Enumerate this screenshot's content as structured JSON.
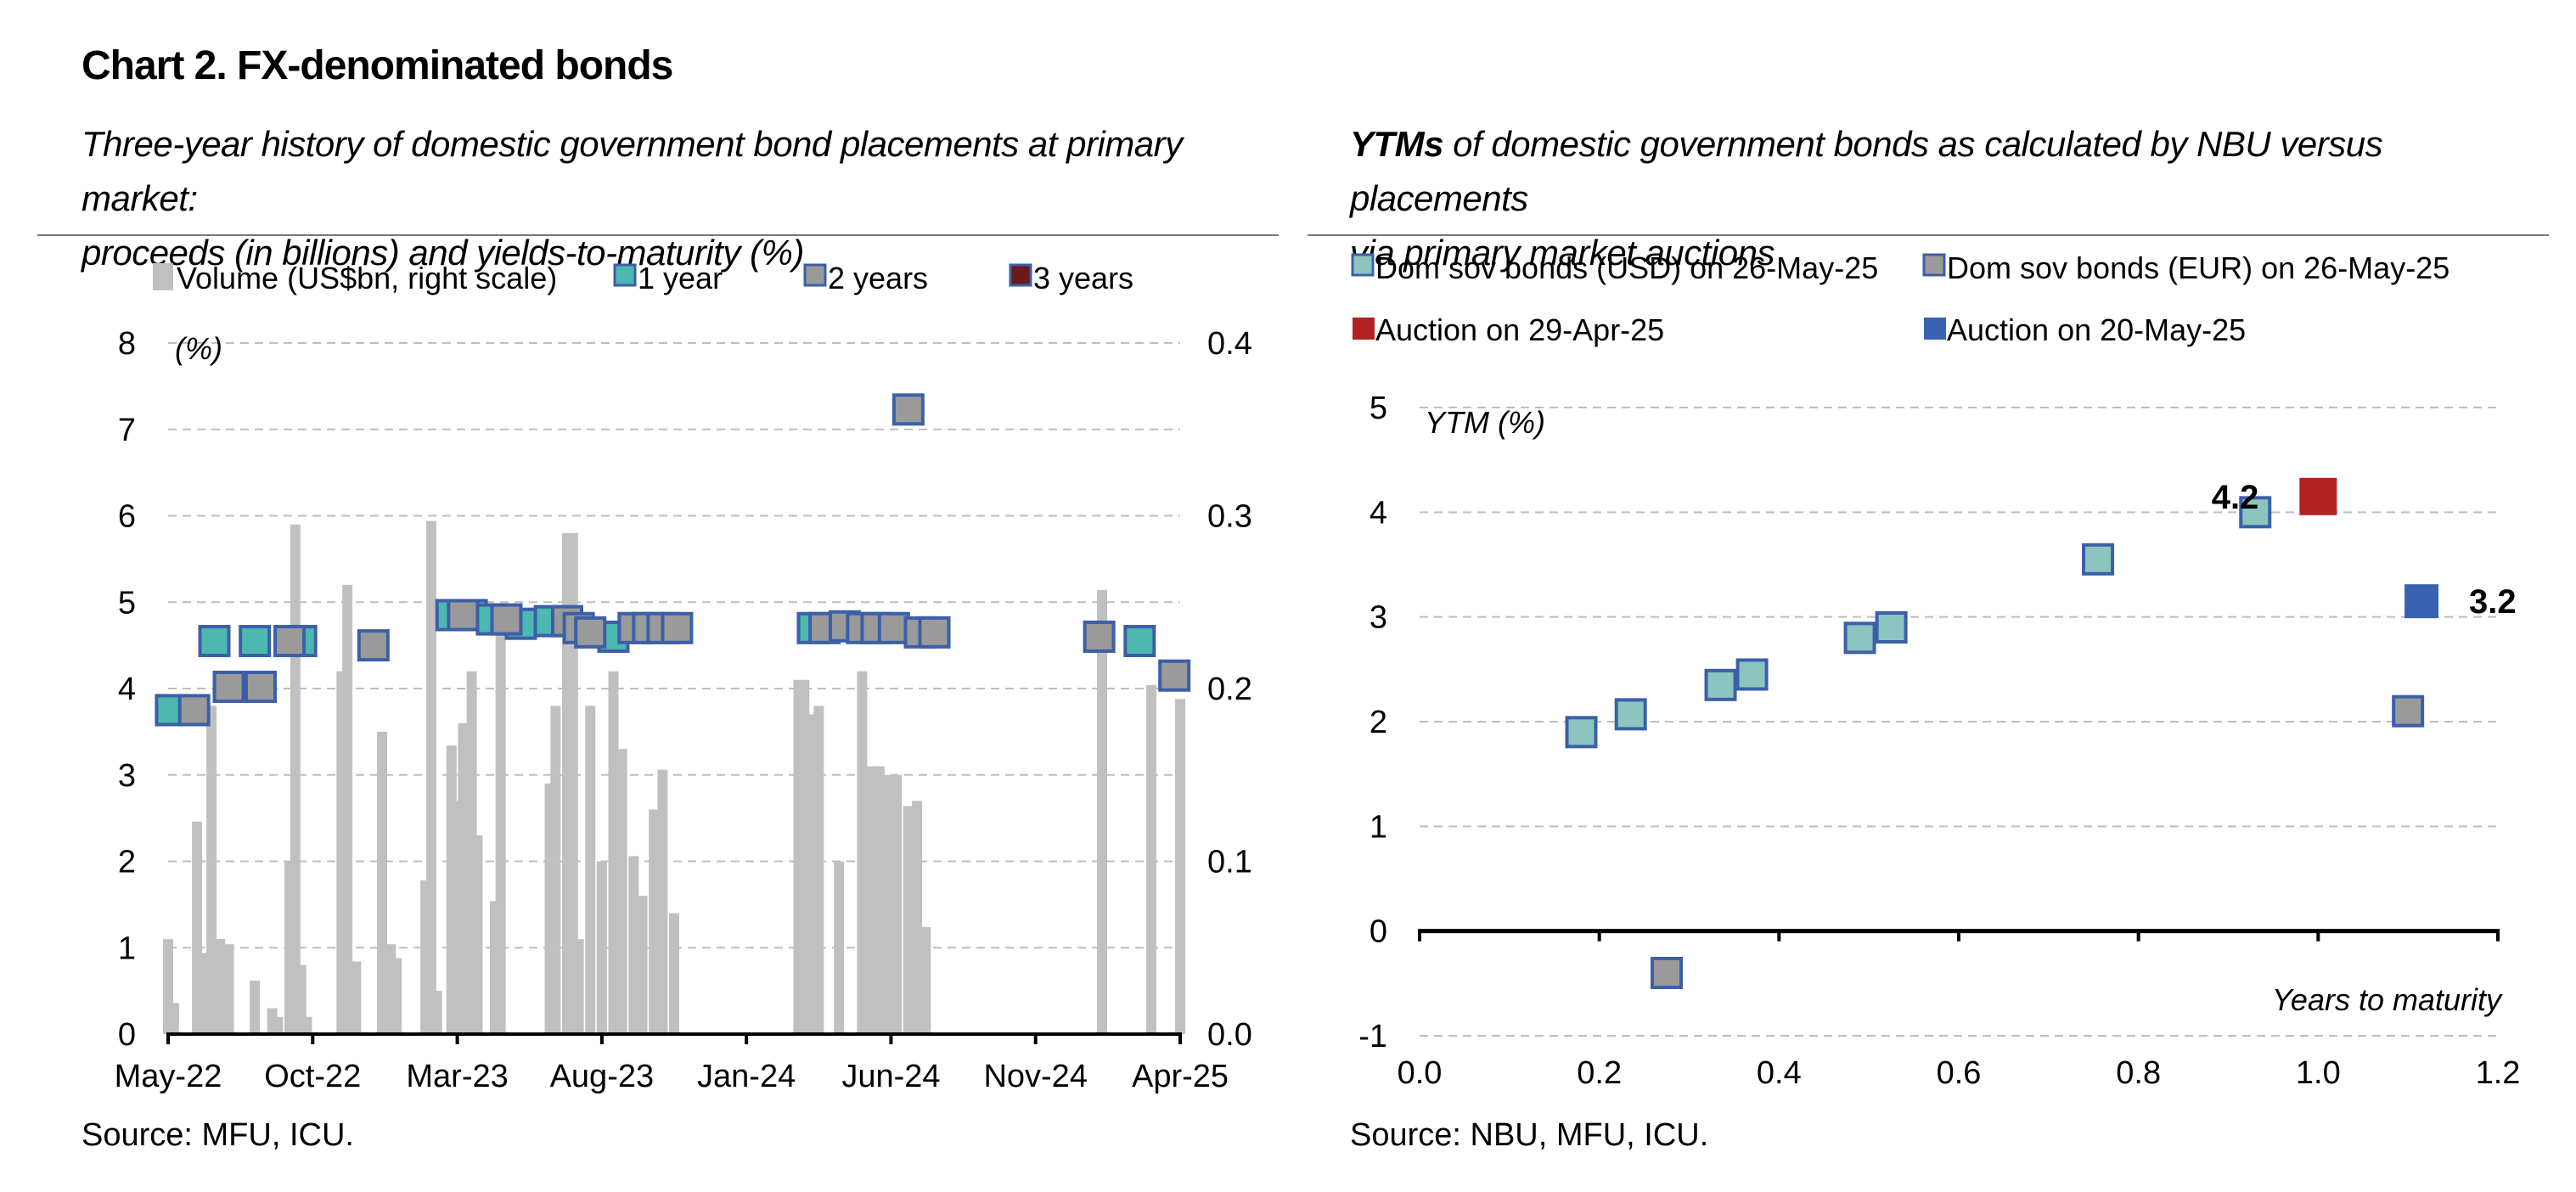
{
  "title": "Chart 2. FX-denominated bonds",
  "left_panel": {
    "subtitle_line1": "Three-year history of domestic government bond placements at primary market:",
    "subtitle_line2": "proceeds (in billions) and yields-to-maturity (%)",
    "source": "Source: MFU, ICU."
  },
  "right_panel": {
    "subtitle_prefix": "YTMs",
    "subtitle_line1_rest": " of domestic government bonds as calculated by NBU versus placements",
    "subtitle_line2": "via primary market auctions",
    "source": "Source: NBU, MFU, ICU."
  },
  "colors": {
    "volume": "#c0c0c0",
    "one_year": "#4cb8b0",
    "two_years": "#9a9a9a",
    "three_years": "#6b1a1a",
    "marker_border": "#3c5fa8",
    "usd": "#8cc4c0",
    "eur": "#9a9a9a",
    "auction_apr": "#b22222",
    "auction_may": "#3a62b0",
    "grid": "#bdbdbd"
  },
  "chart_data": [
    {
      "type": "bar",
      "secondary_type": "scatter",
      "x_ticks": [
        "May-22",
        "Oct-22",
        "Mar-23",
        "Aug-23",
        "Jan-24",
        "Jun-24",
        "Nov-24",
        "Apr-25"
      ],
      "x_range_months": [
        0,
        35
      ],
      "ylabel": "(%)",
      "ylim": [
        0,
        8
      ],
      "y_ticks": [
        0,
        1,
        2,
        3,
        4,
        5,
        6,
        7,
        8
      ],
      "y2lim": [
        0,
        0.4
      ],
      "y2_ticks": [
        "0.0",
        "0.1",
        "0.2",
        "0.3",
        "0.4"
      ],
      "grid": "horizontal dashed",
      "legend_position": "top",
      "legend": [
        "Volume (US$bn, right scale)",
        "1 year",
        "2 years",
        "3 years"
      ],
      "volume_series": [
        {
          "x": 0.0,
          "v": 0.055
        },
        {
          "x": 0.2,
          "v": 0.018
        },
        {
          "x": 1.0,
          "v": 0.123
        },
        {
          "x": 1.2,
          "v": 0.047
        },
        {
          "x": 1.5,
          "v": 0.19
        },
        {
          "x": 1.8,
          "v": 0.055
        },
        {
          "x": 1.95,
          "v": 0.018
        },
        {
          "x": 2.1,
          "v": 0.052
        },
        {
          "x": 3.0,
          "v": 0.031
        },
        {
          "x": 3.6,
          "v": 0.015
        },
        {
          "x": 3.8,
          "v": 0.01
        },
        {
          "x": 4.2,
          "v": 0.1
        },
        {
          "x": 4.4,
          "v": 0.295
        },
        {
          "x": 4.6,
          "v": 0.04
        },
        {
          "x": 4.8,
          "v": 0.01
        },
        {
          "x": 6.0,
          "v": 0.21
        },
        {
          "x": 6.2,
          "v": 0.26
        },
        {
          "x": 6.5,
          "v": 0.042
        },
        {
          "x": 7.4,
          "v": 0.175
        },
        {
          "x": 7.7,
          "v": 0.052
        },
        {
          "x": 7.9,
          "v": 0.044
        },
        {
          "x": 8.9,
          "v": 0.089
        },
        {
          "x": 9.1,
          "v": 0.297
        },
        {
          "x": 9.3,
          "v": 0.025
        },
        {
          "x": 9.8,
          "v": 0.167
        },
        {
          "x": 10.0,
          "v": 0.135
        },
        {
          "x": 10.2,
          "v": 0.18
        },
        {
          "x": 10.5,
          "v": 0.21
        },
        {
          "x": 10.7,
          "v": 0.115
        },
        {
          "x": 11.3,
          "v": 0.077
        },
        {
          "x": 11.5,
          "v": 0.24
        },
        {
          "x": 13.2,
          "v": 0.145
        },
        {
          "x": 13.4,
          "v": 0.19
        },
        {
          "x": 13.8,
          "v": 0.29
        },
        {
          "x": 14.0,
          "v": 0.29
        },
        {
          "x": 14.2,
          "v": 0.055
        },
        {
          "x": 14.6,
          "v": 0.19
        },
        {
          "x": 15.0,
          "v": 0.1
        },
        {
          "x": 15.4,
          "v": 0.21
        },
        {
          "x": 15.7,
          "v": 0.165
        },
        {
          "x": 16.1,
          "v": 0.103
        },
        {
          "x": 16.4,
          "v": 0.08
        },
        {
          "x": 16.8,
          "v": 0.13
        },
        {
          "x": 17.1,
          "v": 0.153
        },
        {
          "x": 17.5,
          "v": 0.07
        },
        {
          "x": 21.8,
          "v": 0.205
        },
        {
          "x": 22.0,
          "v": 0.205
        },
        {
          "x": 22.3,
          "v": 0.185
        },
        {
          "x": 22.5,
          "v": 0.19
        },
        {
          "x": 23.2,
          "v": 0.1
        },
        {
          "x": 24.0,
          "v": 0.21
        },
        {
          "x": 24.3,
          "v": 0.155
        },
        {
          "x": 24.6,
          "v": 0.155
        },
        {
          "x": 24.9,
          "v": 0.15
        },
        {
          "x": 25.2,
          "v": 0.15
        },
        {
          "x": 25.6,
          "v": 0.132
        },
        {
          "x": 25.9,
          "v": 0.135
        },
        {
          "x": 26.2,
          "v": 0.062
        },
        {
          "x": 32.3,
          "v": 0.257
        },
        {
          "x": 34.0,
          "v": 0.202
        },
        {
          "x": 35.0,
          "v": 0.194
        }
      ],
      "series": [
        {
          "name": "1 year",
          "points": [
            {
              "x": 0.1,
              "y": 3.75
            },
            {
              "x": 1.6,
              "y": 4.55
            },
            {
              "x": 3.0,
              "y": 4.55
            },
            {
              "x": 4.6,
              "y": 4.55
            },
            {
              "x": 9.8,
              "y": 4.85
            },
            {
              "x": 10.5,
              "y": 4.85
            },
            {
              "x": 11.2,
              "y": 4.8
            },
            {
              "x": 12.2,
              "y": 4.75
            },
            {
              "x": 13.2,
              "y": 4.78
            },
            {
              "x": 15.4,
              "y": 4.6
            },
            {
              "x": 22.3,
              "y": 4.7
            },
            {
              "x": 33.6,
              "y": 4.55
            }
          ]
        },
        {
          "name": "2 years",
          "points": [
            {
              "x": 0.9,
              "y": 3.75
            },
            {
              "x": 2.1,
              "y": 4.02
            },
            {
              "x": 3.2,
              "y": 4.02
            },
            {
              "x": 4.2,
              "y": 4.55
            },
            {
              "x": 7.1,
              "y": 4.5
            },
            {
              "x": 10.2,
              "y": 4.85
            },
            {
              "x": 11.7,
              "y": 4.8
            },
            {
              "x": 13.8,
              "y": 4.78
            },
            {
              "x": 14.2,
              "y": 4.7
            },
            {
              "x": 14.6,
              "y": 4.65
            },
            {
              "x": 16.1,
              "y": 4.7
            },
            {
              "x": 16.6,
              "y": 4.7
            },
            {
              "x": 17.1,
              "y": 4.7
            },
            {
              "x": 17.6,
              "y": 4.7
            },
            {
              "x": 22.7,
              "y": 4.7
            },
            {
              "x": 23.4,
              "y": 4.72
            },
            {
              "x": 24.0,
              "y": 4.7
            },
            {
              "x": 24.5,
              "y": 4.7
            },
            {
              "x": 25.1,
              "y": 4.7
            },
            {
              "x": 25.6,
              "y": 7.23
            },
            {
              "x": 26.0,
              "y": 4.65
            },
            {
              "x": 26.5,
              "y": 4.65
            },
            {
              "x": 32.2,
              "y": 4.6
            },
            {
              "x": 34.8,
              "y": 4.15
            }
          ]
        },
        {
          "name": "3 years",
          "points": []
        }
      ]
    },
    {
      "type": "scatter",
      "xlabel": "Years to maturity",
      "ylabel": "YTM (%)",
      "xlim": [
        0,
        1.2
      ],
      "ylim": [
        -1,
        5
      ],
      "x_ticks": [
        "0.0",
        "0.2",
        "0.4",
        "0.6",
        "0.8",
        "1.0",
        "1.2"
      ],
      "y_ticks": [
        -1,
        0,
        1,
        2,
        3,
        4,
        5
      ],
      "grid": "horizontal dashed",
      "legend_position": "top",
      "series": [
        {
          "name": "Dom sov bonds (USD) on 26-May-25",
          "points": [
            {
              "x": 0.18,
              "y": 1.9
            },
            {
              "x": 0.235,
              "y": 2.07
            },
            {
              "x": 0.335,
              "y": 2.35
            },
            {
              "x": 0.37,
              "y": 2.45
            },
            {
              "x": 0.49,
              "y": 2.8
            },
            {
              "x": 0.525,
              "y": 2.9
            },
            {
              "x": 0.755,
              "y": 3.55
            },
            {
              "x": 0.93,
              "y": 4.0
            }
          ]
        },
        {
          "name": "Dom sov bonds (EUR) on 26-May-25",
          "points": [
            {
              "x": 0.275,
              "y": -0.4
            },
            {
              "x": 1.1,
              "y": 2.1
            }
          ]
        },
        {
          "name": "Auction on 29-Apr-25",
          "points": [
            {
              "x": 1.0,
              "y": 4.15
            }
          ]
        },
        {
          "name": "Auction on 20-May-25",
          "points": [
            {
              "x": 1.115,
              "y": 3.15
            }
          ]
        }
      ],
      "annotations": [
        "4.2",
        "3.2"
      ]
    }
  ]
}
